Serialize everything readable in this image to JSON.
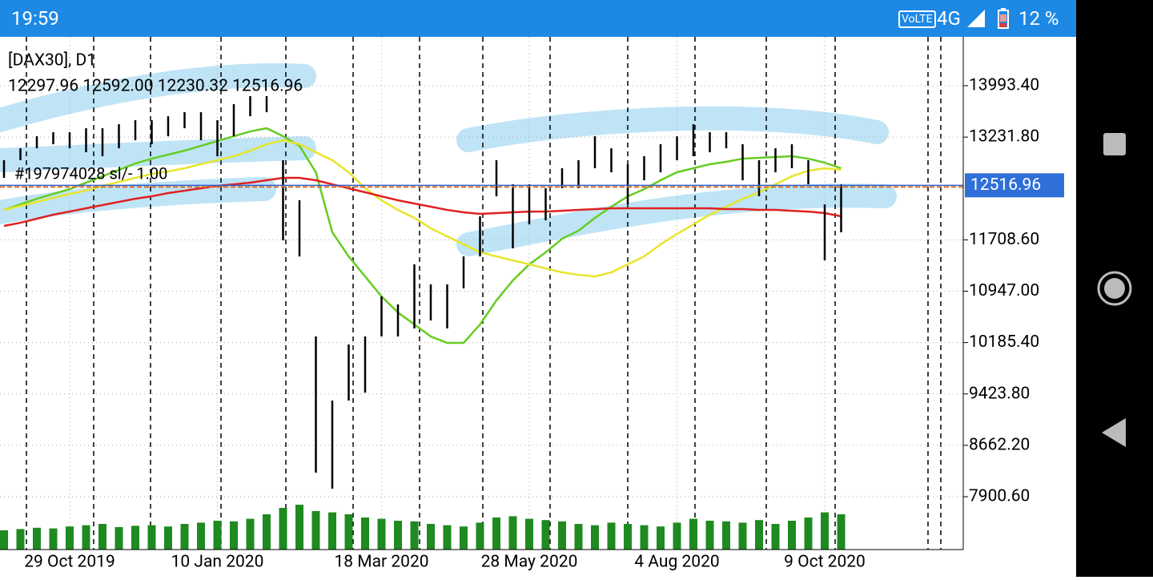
{
  "status_bar": {
    "time": "19:59",
    "network": "VoLTE",
    "signal": "4G",
    "battery": "12 %"
  },
  "chart_data": {
    "type": "hilo",
    "title": "[DAX30], D1",
    "subtitle": "12297.96 12592.00 12230.32 12516.96",
    "annotation": "#197974028 sl/- 1.00",
    "categories": [
      null,
      null,
      null,
      null,
      "29 Oct 2019",
      null,
      null,
      null,
      null,
      null,
      null,
      null,
      null,
      "10 Jan 2020",
      null,
      null,
      null,
      null,
      null,
      null,
      null,
      null,
      null,
      "18 Mar 2020",
      null,
      null,
      null,
      null,
      null,
      null,
      null,
      null,
      "28 May 2020",
      null,
      null,
      null,
      null,
      null,
      null,
      null,
      null,
      "4 Aug 2020",
      null,
      null,
      null,
      null,
      null,
      null,
      null,
      null,
      "9 Oct 2020",
      null
    ],
    "high": [
      12889,
      13066,
      13244,
      13304,
      13304,
      13363,
      13363,
      13423,
      13482,
      13482,
      13541,
      13601,
      13601,
      13482,
      13720,
      13839,
      13839,
      12889,
      12295,
      10276,
      9326,
      10157,
      10276,
      10870,
      10751,
      11345,
      11048,
      11048,
      11463,
      12057,
      12889,
      12532,
      12532,
      12473,
      12770,
      12889,
      13244,
      13066,
      12829,
      12948,
      13126,
      13244,
      13423,
      13304,
      13304,
      13126,
      12889,
      13066,
      13126,
      12889,
      12235,
      12532
    ],
    "low": [
      12628,
      12889,
      13066,
      13126,
      13066,
      13007,
      12948,
      13066,
      13185,
      13126,
      13244,
      13363,
      13185,
      12948,
      13244,
      13541,
      13601,
      11701,
      11463,
      8257,
      8019,
      9326,
      9444,
      10276,
      10276,
      10395,
      10513,
      10395,
      10989,
      11463,
      12354,
      11582,
      11938,
      11998,
      12473,
      12473,
      12770,
      12710,
      12235,
      12592,
      12710,
      12889,
      12948,
      13007,
      13066,
      12592,
      12354,
      12710,
      12770,
      12532,
      11404,
      11820
    ],
    "color": "#000000",
    "moving_averages": [
      {
        "color": "#66cc22",
        "values": [
          12152,
          12235,
          12318,
          12390,
          12460,
          12556,
          12651,
          12746,
          12841,
          12912,
          12972,
          13031,
          13102,
          13173,
          13245,
          13316,
          13363,
          13245,
          13102,
          12711,
          11820,
          11463,
          11166,
          10870,
          10632,
          10454,
          10276,
          10181,
          10181,
          10454,
          10810,
          11107,
          11345,
          11523,
          11725,
          11844,
          12034,
          12200,
          12354,
          12460,
          12592,
          12711,
          12770,
          12830,
          12865,
          12912,
          12925,
          12936,
          12948,
          12912,
          12853,
          12770
        ]
      },
      {
        "color": "#e6e62a",
        "values": [
          12152,
          12212,
          12271,
          12330,
          12390,
          12437,
          12509,
          12568,
          12627,
          12687,
          12722,
          12770,
          12830,
          12889,
          12948,
          13031,
          13126,
          13185,
          13126,
          13007,
          12889,
          12711,
          12473,
          12295,
          12152,
          12034,
          11879,
          11760,
          11642,
          11523,
          11463,
          11404,
          11345,
          11285,
          11226,
          11190,
          11166,
          11226,
          11345,
          11463,
          11642,
          11796,
          11938,
          12081,
          12200,
          12318,
          12414,
          12532,
          12651,
          12734,
          12770,
          12746
        ]
      },
      {
        "color": "#e02020",
        "values": [
          11915,
          11962,
          12022,
          12081,
          12128,
          12176,
          12224,
          12271,
          12318,
          12354,
          12402,
          12437,
          12473,
          12509,
          12532,
          12556,
          12592,
          12627,
          12627,
          12592,
          12532,
          12473,
          12414,
          12354,
          12295,
          12247,
          12200,
          12152,
          12117,
          12093,
          12105,
          12117,
          12128,
          12128,
          12140,
          12152,
          12164,
          12176,
          12176,
          12176,
          12176,
          12176,
          12176,
          12176,
          12164,
          12164,
          12152,
          12152,
          12140,
          12128,
          12105,
          12058
        ]
      }
    ],
    "volume": {
      "color": "#1f8a1f",
      "ylim": [
        0,
        100
      ],
      "values": [
        30,
        32,
        34,
        33,
        36,
        38,
        40,
        35,
        37,
        38,
        36,
        40,
        42,
        45,
        44,
        48,
        55,
        65,
        70,
        60,
        58,
        55,
        50,
        48,
        45,
        44,
        40,
        38,
        36,
        42,
        50,
        52,
        48,
        46,
        44,
        40,
        38,
        42,
        40,
        38,
        36,
        42,
        48,
        45,
        44,
        42,
        46,
        40,
        45,
        50,
        58,
        55
      ]
    },
    "current_price": 12516.96,
    "ylim": [
      7117,
      14718
    ],
    "yticks": [
      {
        "value": 13993.4,
        "label": "13993.40"
      },
      {
        "value": 13231.8,
        "label": "13231.80"
      },
      {
        "value": 11708.6,
        "label": "11708.60"
      },
      {
        "value": 10947,
        "label": "10947.00"
      },
      {
        "value": 10185.4,
        "label": "10185.40"
      },
      {
        "value": 9423.8,
        "label": "9423.80"
      },
      {
        "value": 8662.2,
        "label": "8662.20"
      },
      {
        "value": 7900.6,
        "label": "7900.60"
      }
    ],
    "grid": true
  }
}
